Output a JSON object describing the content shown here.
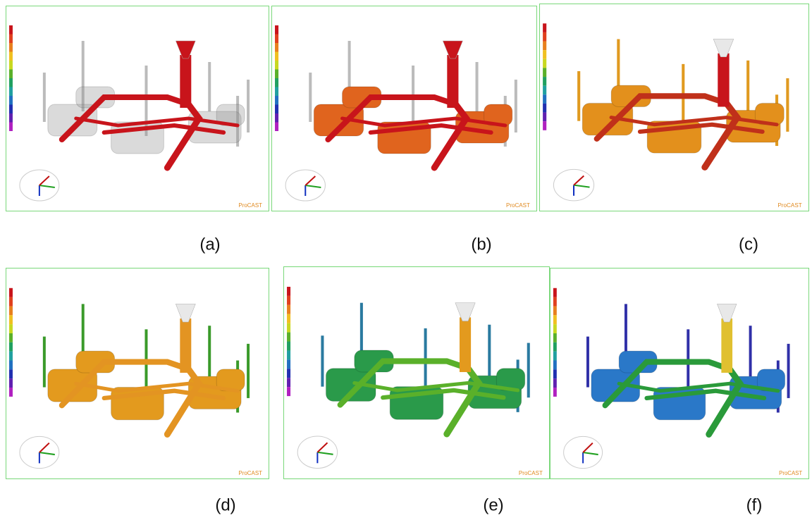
{
  "panels": [
    {
      "label": "(a)",
      "brand": "ProCAST"
    },
    {
      "label": "(b)",
      "brand": "ProCAST"
    },
    {
      "label": "(c)",
      "brand": "ProCAST"
    },
    {
      "label": "(d)",
      "brand": "ProCAST"
    },
    {
      "label": "(e)",
      "brand": "ProCAST"
    },
    {
      "label": "(f)",
      "brand": "ProCAST"
    }
  ]
}
